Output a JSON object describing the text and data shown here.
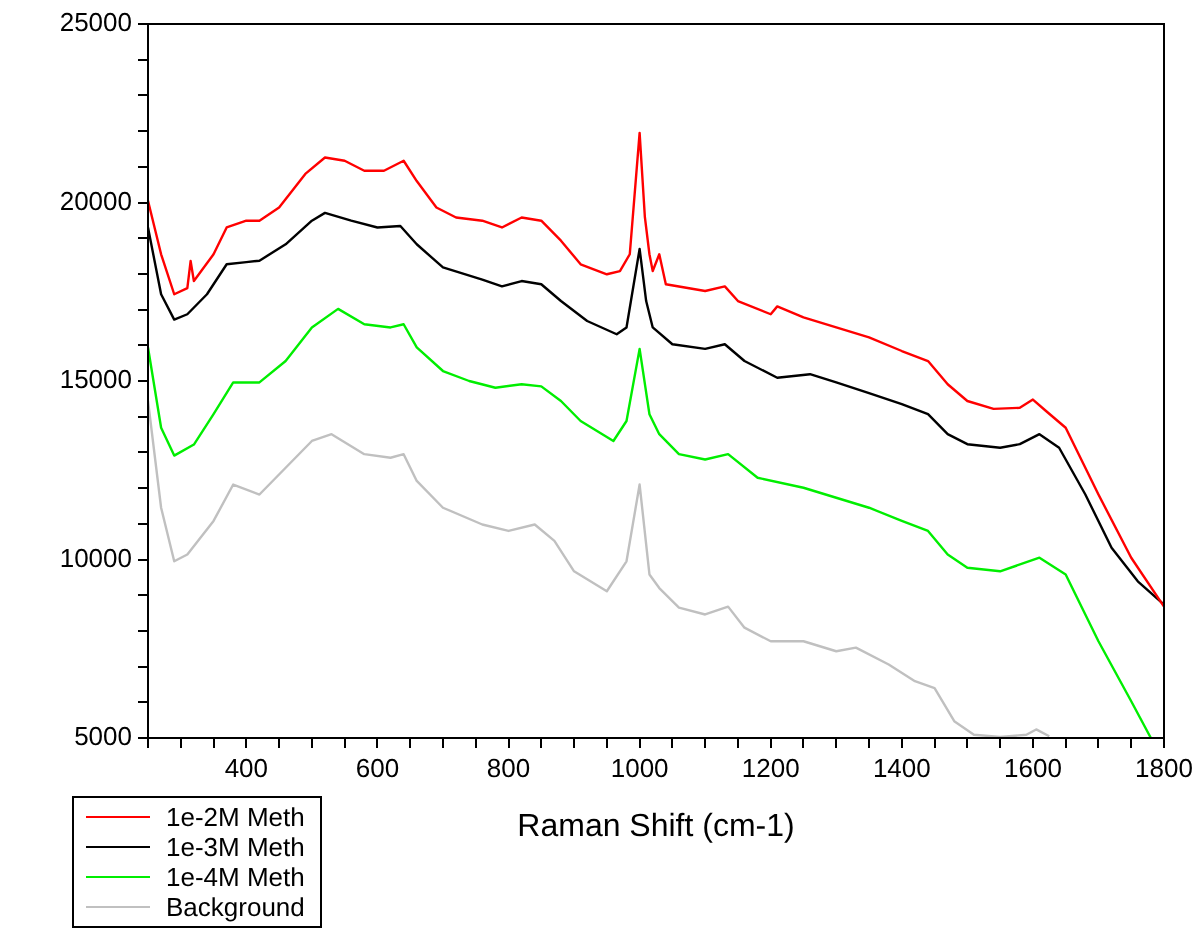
{
  "chart_data": {
    "type": "line",
    "xlabel": "Raman Shift (cm-1)",
    "legend": "bottom left",
    "grid": false,
    "marker": "none",
    "line_style": "solid",
    "xlim": [
      250,
      1800
    ],
    "ylim": [
      5000,
      25000
    ],
    "xticks": [
      {
        "value": 250,
        "label": null
      },
      {
        "value": 300,
        "label": null
      },
      {
        "value": 350,
        "label": null
      },
      400,
      {
        "value": 450,
        "label": null
      },
      {
        "value": 500,
        "label": null
      },
      {
        "value": 550,
        "label": null
      },
      600,
      {
        "value": 650,
        "label": null
      },
      {
        "value": 700,
        "label": null
      },
      {
        "value": 750,
        "label": null
      },
      800,
      {
        "value": 850,
        "label": null
      },
      {
        "value": 900,
        "label": null
      },
      {
        "value": 950,
        "label": null
      },
      1000,
      {
        "value": 1050,
        "label": null
      },
      {
        "value": 1100,
        "label": null
      },
      {
        "value": 1150,
        "label": null
      },
      1200,
      {
        "value": 1250,
        "label": null
      },
      {
        "value": 1300,
        "label": null
      },
      {
        "value": 1350,
        "label": null
      },
      1400,
      {
        "value": 1450,
        "label": null
      },
      {
        "value": 1500,
        "label": null
      },
      {
        "value": 1550,
        "label": null
      },
      1600,
      {
        "value": 1650,
        "label": null
      },
      {
        "value": 1700,
        "label": null
      },
      {
        "value": 1750,
        "label": null
      },
      1800
    ],
    "yticks": [
      5000,
      {
        "value": 6000,
        "label": null
      },
      {
        "value": 7000,
        "label": null
      },
      {
        "value": 8000,
        "label": null
      },
      {
        "value": 9000,
        "label": null
      },
      10000,
      {
        "value": 11000,
        "label": null
      },
      {
        "value": 12000,
        "label": null
      },
      {
        "value": 13000,
        "label": null
      },
      {
        "value": 14000,
        "label": null
      },
      15000,
      {
        "value": 16000,
        "label": null
      },
      {
        "value": 17000,
        "label": null
      },
      {
        "value": 18000,
        "label": null
      },
      {
        "value": 19000,
        "label": null
      },
      20000,
      {
        "value": 21000,
        "label": null
      },
      {
        "value": 22000,
        "label": null
      },
      {
        "value": 23000,
        "label": null
      },
      {
        "value": 24000,
        "label": null
      },
      25000
    ],
    "series": [
      {
        "name": "1e-2M Meth",
        "color": "#ff0000",
        "x": [
          250,
          270,
          290,
          310,
          315,
          320,
          350,
          370,
          400,
          420,
          450,
          490,
          520,
          550,
          580,
          610,
          640,
          660,
          690,
          720,
          760,
          790,
          820,
          850,
          880,
          910,
          950,
          970,
          985,
          1000,
          1008,
          1015,
          1020,
          1030,
          1040,
          1100,
          1130,
          1150,
          1200,
          1210,
          1250,
          1300,
          1350,
          1400,
          1440,
          1470,
          1500,
          1540,
          1580,
          1600,
          1620,
          1650,
          1700,
          1750,
          1800
        ],
        "values": [
          20050,
          18550,
          17430,
          17600,
          18360,
          17800,
          18550,
          19300,
          19490,
          19490,
          19860,
          20800,
          21260,
          21170,
          20890,
          20890,
          21170,
          20600,
          19860,
          19580,
          19490,
          19300,
          19580,
          19490,
          18930,
          18270,
          17990,
          18080,
          18550,
          21950,
          19600,
          18550,
          18080,
          18550,
          17710,
          17520,
          17650,
          17240,
          16870,
          17090,
          16780,
          16500,
          16220,
          15840,
          15560,
          14910,
          14440,
          14220,
          14250,
          14480,
          14160,
          13690,
          11820,
          10050,
          8680
        ]
      },
      {
        "name": "1e-3M Meth",
        "color": "#000000",
        "x": [
          250,
          270,
          290,
          310,
          340,
          370,
          400,
          420,
          460,
          500,
          520,
          560,
          600,
          635,
          660,
          700,
          760,
          790,
          820,
          850,
          880,
          920,
          965,
          980,
          1000,
          1010,
          1020,
          1050,
          1100,
          1130,
          1160,
          1210,
          1260,
          1300,
          1350,
          1400,
          1440,
          1470,
          1500,
          1550,
          1580,
          1610,
          1640,
          1680,
          1720,
          1760,
          1800
        ],
        "values": [
          19300,
          17430,
          16720,
          16870,
          17430,
          18270,
          18330,
          18370,
          18830,
          19490,
          19710,
          19490,
          19300,
          19340,
          18830,
          18180,
          17840,
          17650,
          17800,
          17710,
          17240,
          16680,
          16310,
          16500,
          18700,
          17240,
          16500,
          16030,
          15900,
          16030,
          15560,
          15090,
          15190,
          14960,
          14660,
          14350,
          14070,
          13510,
          13230,
          13130,
          13230,
          13510,
          13130,
          11820,
          10330,
          9390,
          8740
        ]
      },
      {
        "name": "1e-4M Meth",
        "color": "#00ee00",
        "x": [
          250,
          270,
          290,
          320,
          350,
          380,
          420,
          460,
          500,
          540,
          580,
          620,
          640,
          660,
          700,
          740,
          780,
          820,
          850,
          880,
          910,
          960,
          980,
          1000,
          1015,
          1030,
          1060,
          1100,
          1135,
          1180,
          1250,
          1300,
          1350,
          1400,
          1440,
          1470,
          1500,
          1550,
          1610,
          1650,
          1700,
          1750,
          1780
        ],
        "values": [
          15940,
          13690,
          12910,
          13220,
          14070,
          14960,
          14960,
          15560,
          16500,
          17020,
          16590,
          16500,
          16590,
          15940,
          15280,
          15000,
          14810,
          14910,
          14850,
          14440,
          13880,
          13320,
          13880,
          15900,
          14070,
          13510,
          12950,
          12800,
          12950,
          12290,
          12010,
          11730,
          11450,
          11080,
          10800,
          10140,
          9770,
          9670,
          10050,
          9580,
          7710,
          6030,
          5000
        ]
      },
      {
        "name": "Background",
        "color": "#c0c0c0",
        "x": [
          250,
          270,
          290,
          310,
          350,
          380,
          420,
          460,
          500,
          530,
          580,
          620,
          640,
          660,
          700,
          760,
          800,
          840,
          870,
          900,
          950,
          980,
          1000,
          1015,
          1030,
          1060,
          1100,
          1135,
          1160,
          1200,
          1250,
          1300,
          1330,
          1380,
          1420,
          1450,
          1480,
          1510,
          1550,
          1590,
          1605,
          1625
        ],
        "values": [
          14440,
          11450,
          9950,
          10140,
          11080,
          12100,
          11820,
          12570,
          13320,
          13510,
          12950,
          12850,
          12950,
          12200,
          11450,
          10980,
          10800,
          10980,
          10520,
          9670,
          9110,
          9950,
          12100,
          9580,
          9200,
          8650,
          8460,
          8680,
          8090,
          7710,
          7710,
          7430,
          7530,
          7060,
          6590,
          6400,
          5470,
          5090,
          5030,
          5090,
          5240,
          5050
        ]
      }
    ]
  }
}
